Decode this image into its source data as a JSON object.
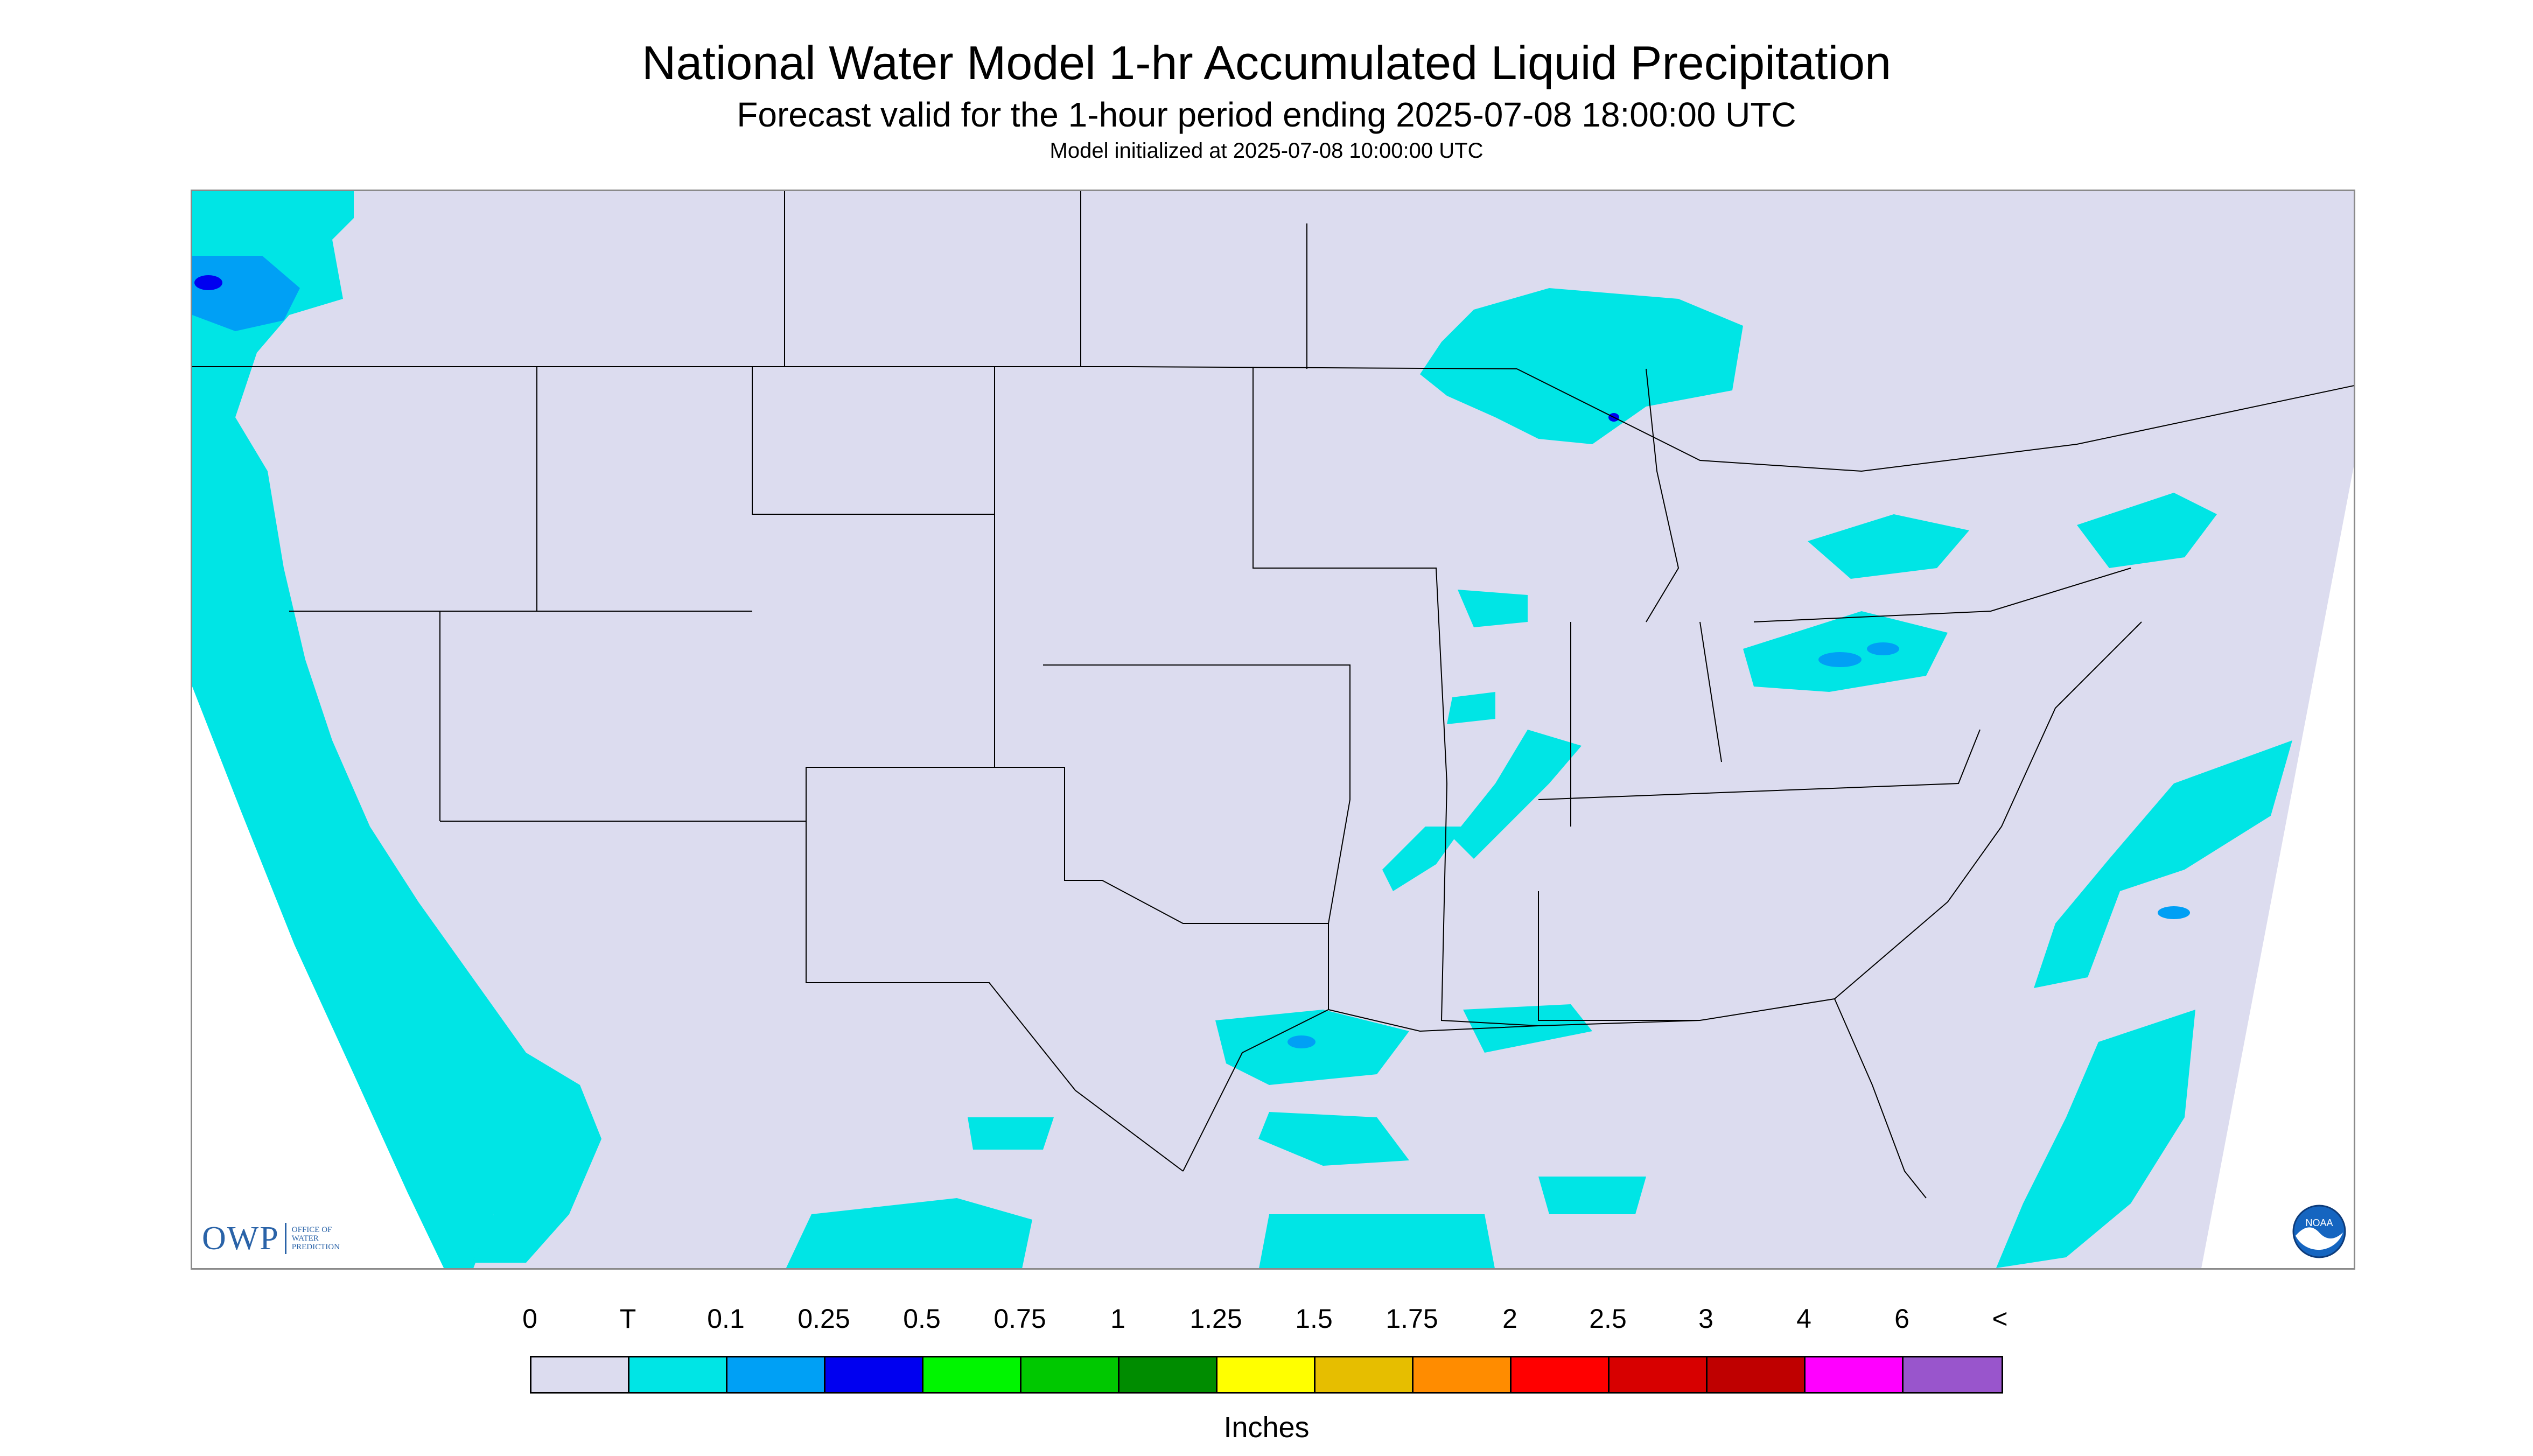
{
  "title": "National Water Model 1-hr Accumulated Liquid Precipitation",
  "subtitle": "Forecast valid for the 1-hour period ending 2025-07-08 18:00:00 UTC",
  "init_text": "Model initialized at 2025-07-08 10:00:00 UTC",
  "owp_logo": {
    "abbr": "OWP",
    "line1": "OFFICE OF",
    "line2": "WATER",
    "line3": "PREDICTION"
  },
  "noaa_logo": {
    "text": "NOAA"
  },
  "legend": {
    "labels": [
      "0",
      "T",
      "0.1",
      "0.25",
      "0.5",
      "0.75",
      "1",
      "1.25",
      "1.5",
      "1.75",
      "2",
      "2.5",
      "3",
      "4",
      "6",
      "<"
    ],
    "colors": [
      "#dcdcef",
      "#00e5e5",
      "#00a0f5",
      "#0000f0",
      "#00f500",
      "#00c800",
      "#008c00",
      "#ffff00",
      "#e6be00",
      "#ff8c00",
      "#ff0000",
      "#d70000",
      "#bf0000",
      "#ff00ff",
      "#9955cc"
    ],
    "units": "Inches"
  },
  "colors": {
    "background": "#dcdcef",
    "trace": "#00e5e5",
    "light": "#00a0f5",
    "moderate": "#0000f0",
    "offgrid": "#ffffff",
    "boundary": "#000000"
  }
}
